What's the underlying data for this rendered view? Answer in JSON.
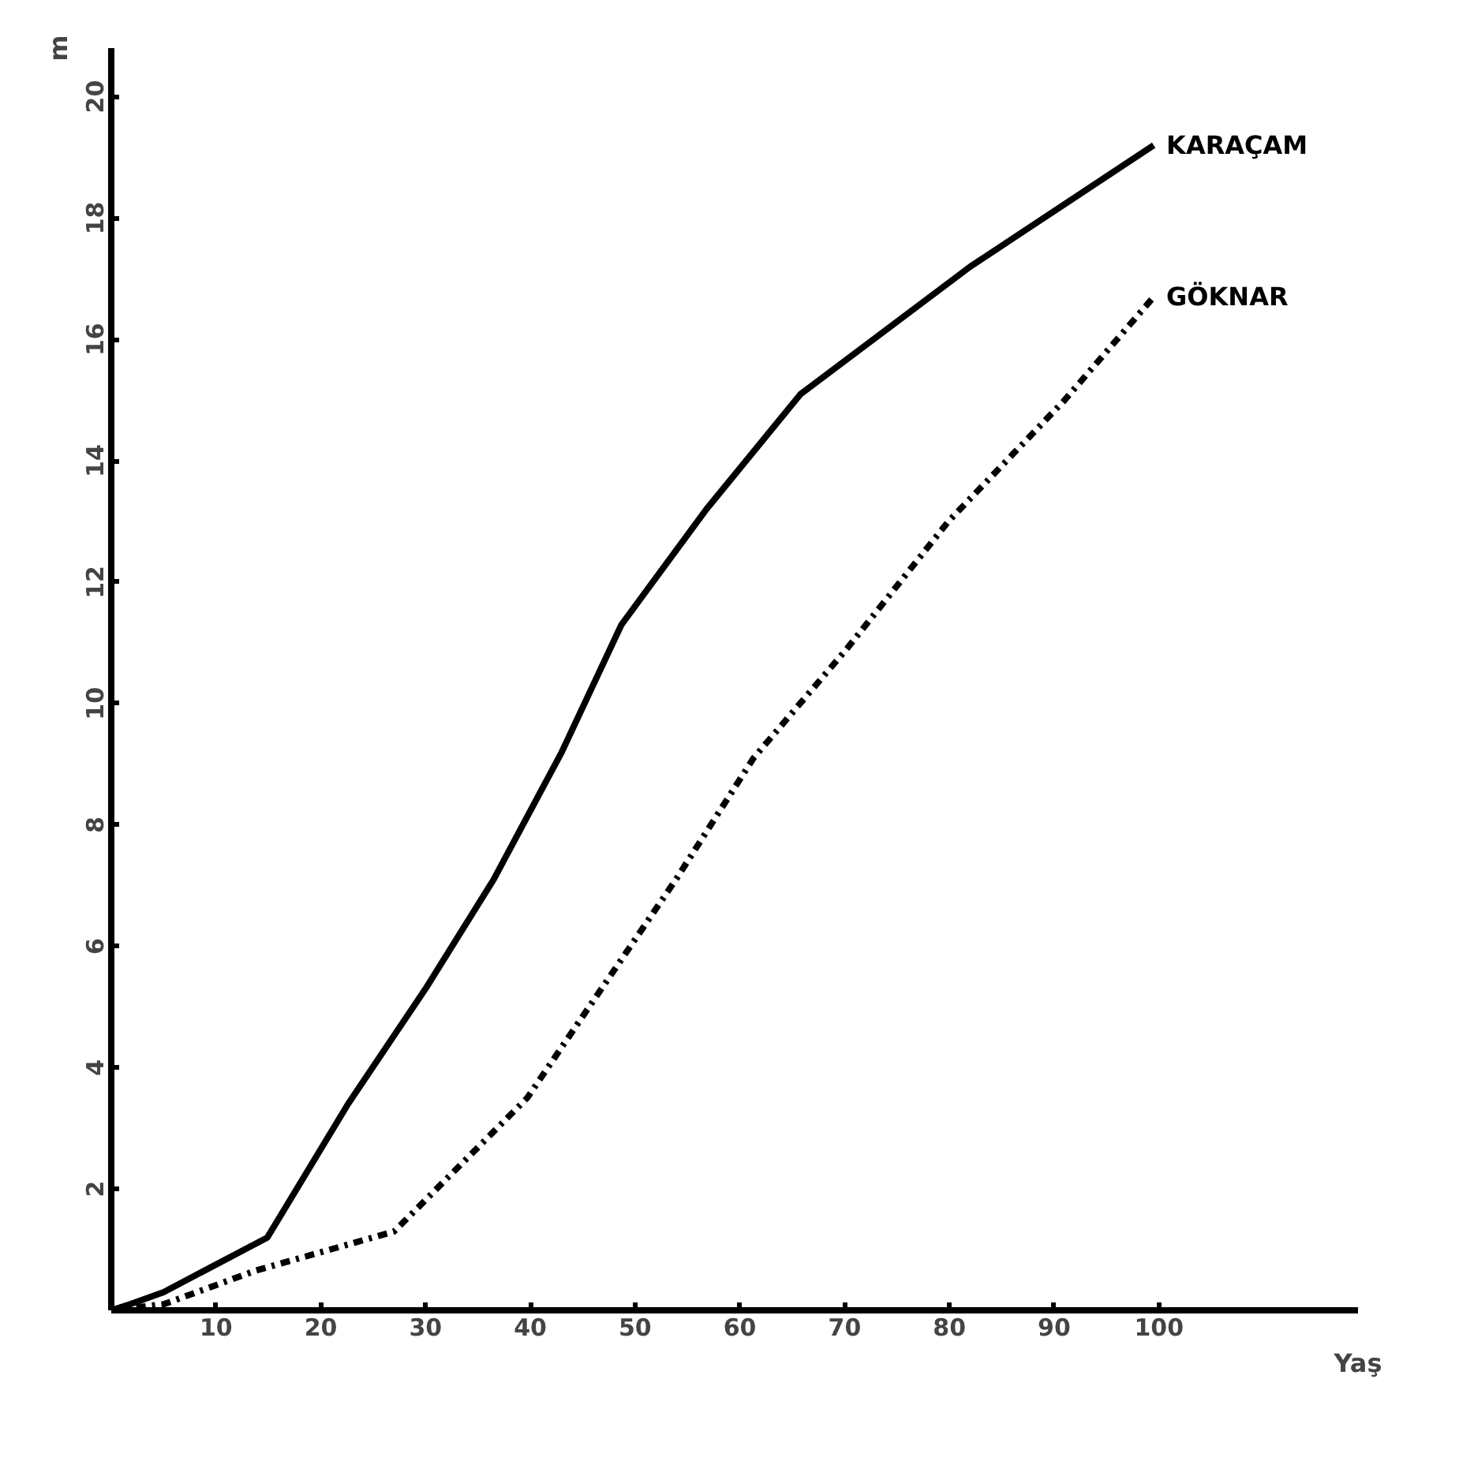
{
  "chart_data": {
    "type": "line",
    "xlabel": "Yaş",
    "ylabel": "m",
    "xlim": [
      0,
      119
    ],
    "ylim": [
      0,
      20.8
    ],
    "xticks": [
      10,
      20,
      30,
      40,
      50,
      60,
      70,
      80,
      90,
      100
    ],
    "yticks": [
      2,
      4,
      6,
      8,
      10,
      12,
      14,
      16,
      18,
      20
    ],
    "series": [
      {
        "name": "KARAÇAM",
        "color": "#000000",
        "line_style": "solid",
        "x": [
          0,
          1.8,
          5,
          14.9,
          22.6,
          30,
          36.5,
          43,
          48.7,
          56.8,
          65.8,
          82,
          99.5
        ],
        "values": [
          0,
          0.1,
          0.3,
          1.2,
          3.4,
          5.3,
          7.1,
          9.2,
          11.3,
          13.2,
          15.1,
          17.2,
          19.2
        ]
      },
      {
        "name": "GÖKNAR",
        "color": "#000000",
        "line_style": "dashdot",
        "x": [
          0,
          5,
          13.7,
          27,
          39.7,
          46.4,
          53.9,
          61.3,
          70.2,
          79.9,
          91,
          99.5
        ],
        "values": [
          0,
          0.1,
          0.65,
          1.3,
          3.5,
          5.2,
          7.1,
          9.1,
          10.9,
          13,
          15,
          16.7
        ]
      }
    ]
  }
}
